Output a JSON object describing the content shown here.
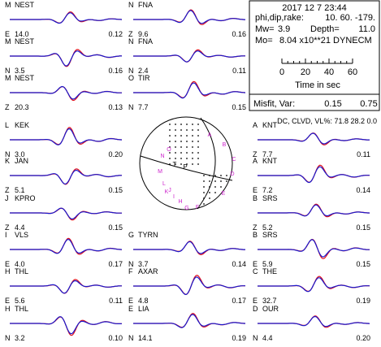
{
  "header": {
    "date": "2017 12  7   23:44",
    "mech_label": "phi,dip,rake:",
    "mech_values": "10. 60. -179.",
    "mw_label": "Mw=",
    "mw_value": "3.9",
    "depth_label": "Depth=",
    "depth_value": "11.0",
    "mo_label": "Mo=",
    "mo_value": "8.04 x10**21 DYNECM",
    "time_ticks": [
      "0",
      "20",
      "40",
      "60"
    ],
    "time_axis_label": "Time  in sec",
    "misfit_label": "Misfit, Var:",
    "misfit_value": "0.15",
    "var_value": "0.75",
    "summary": "DC, CLVD, VL%:  71.8   28.2    0.0"
  },
  "chart_data": {
    "type": "line",
    "title": "",
    "observed_color": "#e0101e",
    "synthetic_color": "#1a1acc",
    "time_axis": {
      "label": "Time  in sec",
      "ticks": [
        0,
        20,
        40,
        60
      ],
      "range": [
        0,
        60
      ]
    },
    "stations": [
      {
        "station": "NEST",
        "letter": "M",
        "comp": "E",
        "dist": "14.0",
        "amp": "0.12",
        "col": 0,
        "row": 0
      },
      {
        "station": "NEST",
        "letter": "M",
        "comp": "N",
        "dist": "3.5",
        "amp": "0.16",
        "col": 0,
        "row": 1
      },
      {
        "station": "NEST",
        "letter": "M",
        "comp": "Z",
        "dist": "20.3",
        "amp": "0.13",
        "col": 0,
        "row": 2
      },
      {
        "station": "KEK",
        "letter": "L",
        "comp": "N",
        "dist": "3.0",
        "amp": "0.20",
        "col": 0,
        "row": 3
      },
      {
        "station": "JAN",
        "letter": "K",
        "comp": "Z",
        "dist": "5.1",
        "amp": "0.15",
        "col": 0,
        "row": 4
      },
      {
        "station": "KPRO",
        "letter": "J",
        "comp": "Z",
        "dist": "4.4",
        "amp": "0.15",
        "col": 0,
        "row": 5
      },
      {
        "station": "VLS",
        "letter": "I",
        "comp": "E",
        "dist": "4.0",
        "amp": "0.17",
        "col": 0,
        "row": 6
      },
      {
        "station": "THL",
        "letter": "H",
        "comp": "E",
        "dist": "5.6",
        "amp": "0.11",
        "col": 0,
        "row": 7
      },
      {
        "station": "THL",
        "letter": "H",
        "comp": "N",
        "dist": "3.2",
        "amp": "0.10",
        "col": 0,
        "row": 8
      },
      {
        "station": "FNA",
        "letter": "N",
        "comp": "Z",
        "dist": "9.6",
        "amp": "0.16",
        "col": 1,
        "row": 0
      },
      {
        "station": "FNA",
        "letter": "N",
        "comp": "N",
        "dist": "2.4",
        "amp": "0.11",
        "col": 1,
        "row": 1
      },
      {
        "station": "TIR",
        "letter": "O",
        "comp": "N",
        "dist": "7.7",
        "amp": "0.15",
        "col": 1,
        "row": 2
      },
      {
        "station": "TYRN",
        "letter": "G",
        "comp": "N",
        "dist": "3.7",
        "amp": "0.14",
        "col": 1,
        "row": 6
      },
      {
        "station": "AXAR",
        "letter": "F",
        "comp": "E",
        "dist": "4.8",
        "amp": "0.17",
        "col": 1,
        "row": 7
      },
      {
        "station": "LIA",
        "letter": "E",
        "comp": "N",
        "dist": "14.1",
        "amp": "0.19",
        "col": 1,
        "row": 8
      },
      {
        "station": "KNT",
        "letter": "A",
        "comp": "Z",
        "dist": "7.7",
        "amp": "0.11",
        "col": 2,
        "row": 3
      },
      {
        "station": "KNT",
        "letter": "A",
        "comp": "E",
        "dist": "7.2",
        "amp": "0.14",
        "col": 2,
        "row": 4
      },
      {
        "station": "SRS",
        "letter": "B",
        "comp": "Z",
        "dist": "5.2",
        "amp": "0.15",
        "col": 2,
        "row": 5
      },
      {
        "station": "SRS",
        "letter": "B",
        "comp": "E",
        "dist": "5.9",
        "amp": "0.15",
        "col": 2,
        "row": 6
      },
      {
        "station": "THE",
        "letter": "C",
        "comp": "E",
        "dist": "32.7",
        "amp": "0.19",
        "col": 2,
        "row": 7
      },
      {
        "station": "OUR",
        "letter": "D",
        "comp": "N",
        "dist": "4.4",
        "amp": "0.20",
        "col": 2,
        "row": 8
      }
    ],
    "beachball": {
      "strike": 10,
      "dip": 60,
      "rake": -179,
      "station_markers": [
        "A",
        "B",
        "C",
        "D",
        "E",
        "F",
        "G",
        "H",
        "I",
        "J",
        "K",
        "L",
        "M",
        "N",
        "O"
      ],
      "marker_color": "#cc22cc"
    }
  }
}
